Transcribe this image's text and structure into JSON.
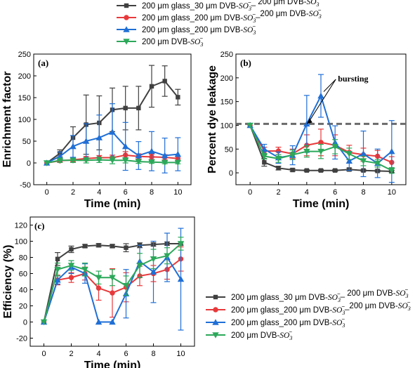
{
  "legend_top": [
    {
      "series": 0,
      "parts": [
        "200 μm glass_30 μm DVB-",
        "SO",
        "3",
        "−",
        "_ 200 μm DVB-",
        "SO",
        "3",
        "−"
      ]
    },
    {
      "series": 1,
      "parts": [
        "200 μm glass_200 μm DVB-",
        "SO",
        "3",
        "−",
        "_200 μm DVB-",
        "SO",
        "3",
        "−"
      ]
    },
    {
      "series": 2,
      "parts": [
        "200 μm glass_200 μm DVB-",
        "SO",
        "3",
        "−"
      ]
    },
    {
      "series": 3,
      "parts": [
        "200 μm DVB-",
        "SO",
        "3",
        "−"
      ]
    }
  ],
  "legend_bottom": [
    {
      "series": 0,
      "parts": [
        "200 μm glass_30 μm DVB-",
        "SO",
        "3",
        "−",
        "_ 200 μm DVB-",
        "SO",
        "3",
        "−"
      ]
    },
    {
      "series": 1,
      "parts": [
        "200 μm glass_200 μm DVB-",
        "SO",
        "3",
        "−",
        "_200 μm DVB-",
        "SO",
        "3",
        "−"
      ]
    },
    {
      "series": 2,
      "parts": [
        "200 μm glass_200 μm DVB-",
        "SO",
        "3",
        "−"
      ]
    },
    {
      "series": 3,
      "parts": [
        "200 μm DVB-",
        "SO",
        "3",
        "−"
      ]
    }
  ],
  "chart_data": [
    {
      "type": "line",
      "panel_label": "(a)",
      "xlabel": "Time (min)",
      "ylabel": "Enrichment factor",
      "xlim": [
        -1,
        11
      ],
      "ylim": [
        -50,
        250
      ],
      "xticks": [
        0,
        2,
        4,
        6,
        8,
        10
      ],
      "yticks": [
        -50,
        0,
        50,
        100,
        150,
        200,
        250
      ],
      "series": [
        {
          "name": "200 μm glass_30 μm DVB-SO3−_ 200 μm DVB-SO3−",
          "color": "#404040",
          "marker": "square",
          "x": [
            0,
            1,
            2,
            3,
            4,
            5,
            6,
            7,
            8,
            9,
            10
          ],
          "y": [
            0,
            22,
            58,
            88,
            92,
            122,
            126,
            126,
            176,
            188,
            151
          ],
          "err": [
            0,
            8,
            25,
            68,
            62,
            50,
            50,
            50,
            48,
            35,
            18
          ]
        },
        {
          "name": "200 μm glass_200 μm DVB-SO3−_200 μm DVB-SO3−",
          "color": "#e8393b",
          "marker": "circle",
          "x": [
            0,
            1,
            2,
            3,
            4,
            5,
            6,
            7,
            8,
            9,
            10
          ],
          "y": [
            0,
            5,
            7,
            10,
            12,
            12,
            18,
            15,
            14,
            13,
            10
          ],
          "err": [
            0,
            3,
            4,
            5,
            5,
            6,
            8,
            6,
            6,
            6,
            5
          ]
        },
        {
          "name": "200 μm glass_200 μm DVB-SO3−",
          "color": "#1f6fd6",
          "marker": "triangle-up",
          "x": [
            0,
            1,
            2,
            3,
            4,
            5,
            6,
            7,
            8,
            9,
            10
          ],
          "y": [
            0,
            15,
            38,
            50,
            58,
            71,
            38,
            17,
            27,
            17,
            20
          ],
          "err": [
            0,
            10,
            25,
            40,
            52,
            65,
            55,
            32,
            45,
            40,
            38
          ]
        },
        {
          "name": "200 μm DVB-SO3−",
          "color": "#2ca85a",
          "marker": "triangle-down",
          "x": [
            0,
            1,
            2,
            3,
            4,
            5,
            6,
            7,
            8,
            9,
            10
          ],
          "y": [
            0,
            6,
            6,
            6,
            7,
            6,
            6,
            3,
            2,
            1,
            1
          ],
          "err": [
            0,
            5,
            5,
            6,
            6,
            8,
            6,
            4,
            3,
            3,
            3
          ]
        }
      ]
    },
    {
      "type": "line",
      "panel_label": "(b)",
      "xlabel": "Time (min)",
      "ylabel": "Percent dye leakage",
      "xlim": [
        -1,
        11
      ],
      "ylim": [
        -25,
        250
      ],
      "xticks": [
        0,
        2,
        4,
        6,
        8,
        10
      ],
      "yticks": [
        0,
        50,
        100,
        150,
        200,
        250
      ],
      "reference_line": 103,
      "annotation": "bursting",
      "series": [
        {
          "name": "200 μm glass_30 μm DVB-SO3−_ 200 μm DVB-SO3−",
          "color": "#404040",
          "marker": "square",
          "x": [
            0,
            1,
            2,
            3,
            4,
            5,
            6,
            7,
            8,
            9,
            10
          ],
          "y": [
            100,
            22,
            10,
            6,
            5,
            5,
            5,
            7,
            5,
            4,
            3
          ],
          "err": [
            0,
            8,
            4,
            3,
            2,
            2,
            2,
            3,
            2,
            2,
            2
          ]
        },
        {
          "name": "200 μm glass_200 μm DVB-SO3−_200 μm DVB-SO3−",
          "color": "#e8393b",
          "marker": "circle",
          "x": [
            0,
            1,
            2,
            3,
            4,
            5,
            6,
            7,
            8,
            9,
            10
          ],
          "y": [
            100,
            46,
            46,
            40,
            58,
            64,
            58,
            43,
            38,
            35,
            22
          ],
          "err": [
            0,
            8,
            8,
            10,
            22,
            28,
            22,
            15,
            14,
            12,
            12
          ]
        },
        {
          "name": "200 μm glass_200 μm DVB-SO3−",
          "color": "#1f6fd6",
          "marker": "triangle-up",
          "x": [
            0,
            1,
            2,
            3,
            4,
            5,
            6,
            7,
            8,
            9,
            10
          ],
          "y": [
            100,
            50,
            32,
            37,
            103,
            162,
            64,
            25,
            40,
            20,
            45
          ],
          "err": [
            0,
            10,
            12,
            20,
            60,
            45,
            35,
            20,
            48,
            30,
            65
          ]
        },
        {
          "name": "200 μm DVB-SO3−",
          "color": "#2ca85a",
          "marker": "triangle-down",
          "x": [
            0,
            1,
            2,
            3,
            4,
            5,
            6,
            7,
            8,
            9,
            10
          ],
          "y": [
            100,
            35,
            30,
            38,
            45,
            45,
            55,
            40,
            25,
            20,
            5
          ],
          "err": [
            0,
            6,
            8,
            10,
            12,
            15,
            15,
            12,
            10,
            8,
            6
          ]
        }
      ]
    },
    {
      "type": "line",
      "panel_label": "(c)",
      "xlabel": "Time (min)",
      "ylabel": "Efficiency (%)",
      "xlim": [
        -1,
        11
      ],
      "ylim": [
        -30,
        130
      ],
      "xticks": [
        0,
        2,
        4,
        6,
        8,
        10
      ],
      "yticks": [
        -20,
        0,
        20,
        40,
        60,
        80,
        100,
        120
      ],
      "series": [
        {
          "name": "200 μm glass_30 μm DVB-SO3−_ 200 μm DVB-SO3−",
          "color": "#404040",
          "marker": "square",
          "x": [
            0,
            1,
            2,
            3,
            4,
            5,
            6,
            7,
            8,
            9,
            10
          ],
          "y": [
            0,
            78,
            90,
            94,
            95,
            94,
            92,
            95,
            96,
            97,
            97
          ],
          "err": [
            0,
            8,
            4,
            2,
            2,
            2,
            5,
            3,
            2,
            2,
            2
          ]
        },
        {
          "name": "200 μm glass_200 μm DVB-SO3−_200 μm DVB-SO3−",
          "color": "#e8393b",
          "marker": "circle",
          "x": [
            0,
            1,
            2,
            3,
            4,
            5,
            6,
            7,
            8,
            9,
            10
          ],
          "y": [
            0,
            52,
            55,
            60,
            42,
            36,
            43,
            57,
            60,
            65,
            78
          ],
          "err": [
            0,
            6,
            6,
            8,
            15,
            30,
            18,
            12,
            10,
            12,
            15
          ]
        },
        {
          "name": "200 μm glass_200 μm DVB-SO3−",
          "color": "#1f6fd6",
          "marker": "triangle-up",
          "x": [
            0,
            1,
            2,
            3,
            4,
            5,
            6,
            7,
            8,
            9,
            10
          ],
          "y": [
            0,
            52,
            68,
            60,
            0,
            0,
            35,
            75,
            62,
            80,
            53
          ],
          "err": [
            0,
            5,
            8,
            12,
            0,
            0,
            30,
            20,
            38,
            30,
            63
          ]
        },
        {
          "name": "200 μm DVB-SO3−",
          "color": "#2ca85a",
          "marker": "triangle-down",
          "x": [
            0,
            1,
            2,
            3,
            4,
            5,
            6,
            7,
            8,
            9,
            10
          ],
          "y": [
            0,
            65,
            70,
            65,
            55,
            55,
            45,
            70,
            78,
            82,
            97
          ],
          "err": [
            0,
            8,
            6,
            8,
            8,
            10,
            12,
            15,
            12,
            10,
            8
          ]
        }
      ]
    }
  ]
}
